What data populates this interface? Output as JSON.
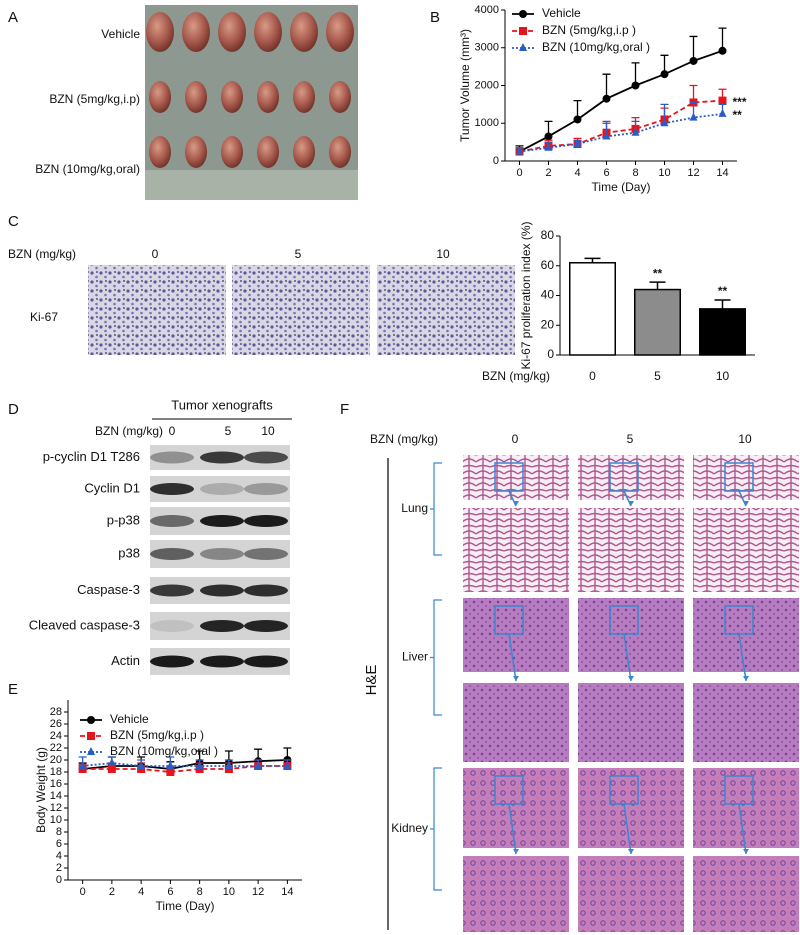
{
  "panel_labels": [
    "A",
    "B",
    "C",
    "D",
    "E",
    "F"
  ],
  "tumor_photo": {
    "rows": [
      "Vehicle",
      "BZN (5mg/kg,i.p)",
      "BZN (10mg/kg,oral)"
    ]
  },
  "ihc": {
    "dose_label": "BZN (mg/kg)",
    "doses": [
      "0",
      "5",
      "10"
    ],
    "stain": "Ki-67"
  },
  "western_blot": {
    "title": "Tumor xenografts",
    "dose_label": "BZN (mg/kg)",
    "doses": [
      "0",
      "5",
      "10"
    ],
    "proteins": [
      "p-cyclin D1 T286",
      "Cyclin D1",
      "p-p38",
      "p38",
      "Caspase-3",
      "Cleaved caspase-3",
      "Actin"
    ]
  },
  "histology": {
    "dose_label": "BZN (mg/kg)",
    "doses": [
      "0",
      "5",
      "10"
    ],
    "stain": "H&E",
    "organs": [
      "Lung",
      "Liver",
      "Kidney"
    ]
  },
  "chart_data": [
    {
      "type": "line",
      "ylabel": "Tumor Volume (mm³)",
      "xlabel": "Time (Day)",
      "x": [
        0,
        2,
        4,
        6,
        8,
        10,
        12,
        14
      ],
      "xlim": [
        -1,
        15
      ],
      "xticks": [
        0,
        2,
        4,
        6,
        8,
        10,
        12,
        14
      ],
      "ylim": [
        0,
        4000
      ],
      "yticks": [
        0,
        1000,
        2000,
        3000,
        4000
      ],
      "series": [
        {
          "name": "Vehicle",
          "color": "#000000",
          "marker": "circle",
          "dash": "solid",
          "values": [
            250,
            650,
            1100,
            1650,
            2000,
            2300,
            2650,
            2920
          ],
          "errors": [
            150,
            400,
            500,
            650,
            600,
            500,
            650,
            600
          ]
        },
        {
          "name": "BZN (5mg/kg,i.p )",
          "color": "#e8141c",
          "marker": "square",
          "dash": "dashed",
          "values": [
            250,
            400,
            450,
            750,
            850,
            1100,
            1550,
            1600
          ],
          "errors": [
            100,
            150,
            150,
            250,
            300,
            300,
            450,
            300
          ]
        },
        {
          "name": "BZN (10mg/kg,oral )",
          "color": "#2a5cc4",
          "marker": "triangle",
          "dash": "dotted",
          "values": [
            250,
            350,
            450,
            650,
            750,
            1000,
            1150,
            1250
          ],
          "errors": [
            100,
            150,
            100,
            400,
            300,
            500,
            400,
            250
          ]
        }
      ],
      "annotations": [
        "***",
        "**"
      ]
    },
    {
      "type": "bar",
      "ylabel": "Ki-67 proliferation index (%)",
      "xlabel": "BZN (mg/kg)",
      "categories": [
        "0",
        "5",
        "10"
      ],
      "values": [
        62,
        44,
        31
      ],
      "errors": [
        3,
        5,
        6
      ],
      "colors": [
        "#ffffff",
        "#8c8c8c",
        "#000000"
      ],
      "ylim": [
        0,
        80
      ],
      "yticks": [
        0,
        20,
        40,
        60,
        80
      ],
      "annotations": [
        "**",
        "**"
      ]
    },
    {
      "type": "line",
      "ylabel": "Body Weight  (g)",
      "xlabel": "Time (Day)",
      "x": [
        0,
        2,
        4,
        6,
        8,
        10,
        12,
        14
      ],
      "xlim": [
        -1,
        15
      ],
      "xticks": [
        0,
        2,
        4,
        6,
        8,
        10,
        12,
        14
      ],
      "ylim": [
        0,
        30
      ],
      "yticks": [
        0,
        2,
        4,
        6,
        8,
        10,
        12,
        14,
        16,
        18,
        20,
        22,
        24,
        26,
        28
      ],
      "series": [
        {
          "name": "Vehicle",
          "color": "#000000",
          "marker": "circle",
          "dash": "solid",
          "values": [
            18.5,
            19,
            19,
            18.5,
            19.5,
            19.5,
            19.8,
            20
          ],
          "errors": [
            1,
            1.5,
            1.5,
            1.2,
            2,
            2,
            2,
            2
          ]
        },
        {
          "name": "BZN (5mg/kg,i.p )",
          "color": "#e8141c",
          "marker": "square",
          "dash": "dashed",
          "values": [
            18.5,
            18.5,
            18.5,
            18,
            18.5,
            18.5,
            19,
            19
          ],
          "errors": [
            0.8,
            1,
            1,
            1,
            1,
            1,
            1,
            1
          ]
        },
        {
          "name": "BZN (10mg/kg,oral )",
          "color": "#2a5cc4",
          "marker": "triangle",
          "dash": "dotted",
          "values": [
            19,
            19.5,
            19,
            19,
            19,
            19,
            19,
            19
          ],
          "errors": [
            1.5,
            1,
            1,
            1.5,
            1,
            1,
            1,
            1
          ]
        }
      ]
    }
  ]
}
